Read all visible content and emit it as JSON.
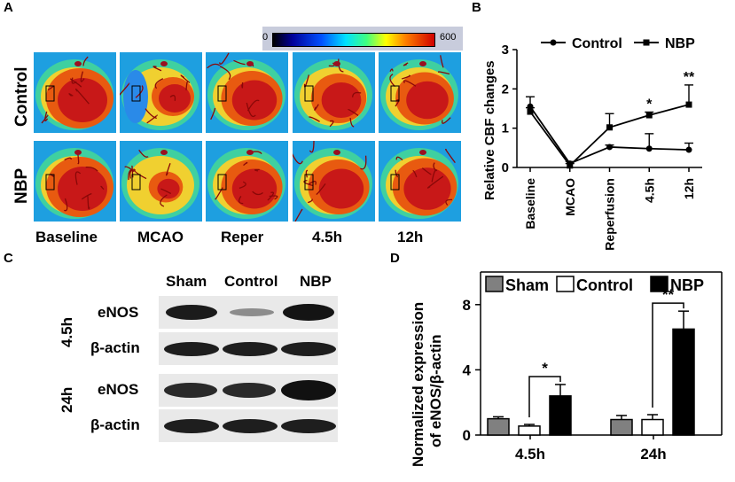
{
  "panels": {
    "a": "A",
    "b": "B",
    "c": "C",
    "d": "D"
  },
  "panel_a": {
    "colorbar": {
      "min": "0",
      "max": "600"
    },
    "rows": [
      "Control",
      "NBP"
    ],
    "columns": [
      "Baseline",
      "MCAO",
      "Reper",
      "4.5h",
      "12h"
    ]
  },
  "panel_c": {
    "groups": [
      "Sham",
      "Control",
      "NBP"
    ],
    "timepoints": [
      "4.5h",
      "24h"
    ],
    "bands": [
      "eNOS",
      "β-actin",
      "eNOS",
      "β-actin"
    ]
  },
  "chart_data": [
    {
      "type": "line",
      "title": "",
      "ylabel": "Relative CBF changes",
      "xlabel": "",
      "categories": [
        "Baseline",
        "MCAO",
        "Reperfusion",
        "4.5h",
        "12h"
      ],
      "ylim": [
        0,
        3
      ],
      "yticks": [
        "0",
        "1",
        "2",
        "3"
      ],
      "legend": "top",
      "series": [
        {
          "name": "Control",
          "marker": "circle",
          "values": [
            1.55,
            0.1,
            0.52,
            0.48,
            0.45
          ],
          "errors": [
            0.25,
            0.05,
            0.05,
            0.38,
            0.17
          ]
        },
        {
          "name": "NBP",
          "marker": "square",
          "values": [
            1.42,
            0.05,
            1.02,
            1.33,
            1.6
          ],
          "errors": [
            0.1,
            0.05,
            0.35,
            0.08,
            0.5
          ]
        }
      ],
      "annotations": [
        {
          "category": "4.5h",
          "text": "*"
        },
        {
          "category": "12h",
          "text": "**"
        }
      ]
    },
    {
      "type": "bar",
      "title": "",
      "ylabel": "Normalized expression of eNOS/β-actin",
      "ylabel_lines": [
        "Normalized expression",
        "of eNOS/β-actin"
      ],
      "xlabel": "",
      "categories": [
        "4.5h",
        "24h"
      ],
      "ylim": [
        0,
        10
      ],
      "yticks": [
        "0",
        "4",
        "8"
      ],
      "legend": "top",
      "series": [
        {
          "name": "Sham",
          "color": "#808080",
          "values": [
            1.0,
            0.95
          ],
          "errors": [
            0.12,
            0.25
          ]
        },
        {
          "name": "Control",
          "color": "#ffffff",
          "values": [
            0.55,
            0.95
          ],
          "errors": [
            0.1,
            0.3
          ]
        },
        {
          "name": "NBP",
          "color": "#000000",
          "values": [
            2.4,
            6.5
          ],
          "errors": [
            0.7,
            1.1
          ]
        }
      ],
      "annotations": [
        {
          "category": "4.5h",
          "text": "*"
        },
        {
          "category": "24h",
          "text": "**"
        }
      ]
    }
  ]
}
